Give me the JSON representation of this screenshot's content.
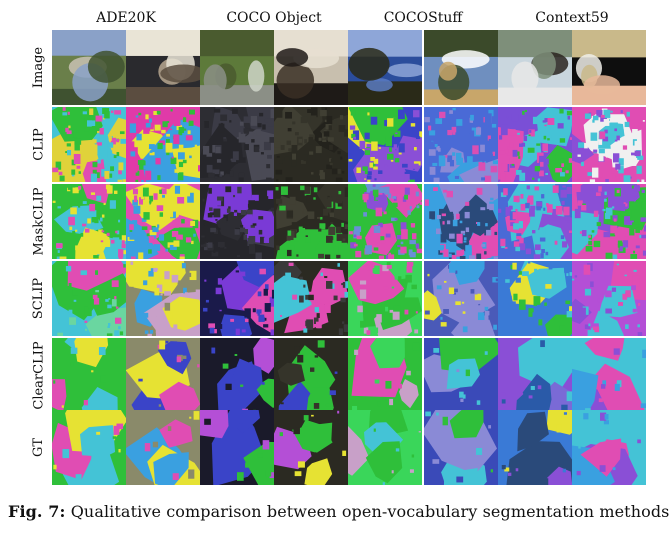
{
  "figure": {
    "columns": [
      "ADE20K",
      "COCO Object",
      "COCOStuff",
      "Context59"
    ],
    "rows": [
      "Image",
      "CLIP",
      "MaskCLIP",
      "SCLIP",
      "ClearCLIP",
      "GT"
    ],
    "caption_label": "Fig. 7:",
    "caption_text": "Qualitative comparison between open-vocabulary segmentation methods."
  },
  "palettes": {
    "image": [
      [
        "#6a7f4a",
        "#c9c2b4",
        "#8aa1c8",
        "#3f5230"
      ],
      [
        "#2a2a2e",
        "#b7a78f",
        "#e9e4d6",
        "#5b4d40"
      ],
      [
        "#5d7a3a",
        "#cfd6c9",
        "#4a5b2f",
        "#8b8f86"
      ],
      [
        "#c8bfae",
        "#3a2f25",
        "#e6dfd1",
        "#1e1a17"
      ],
      [
        "#2b4d9c",
        "#5b7bc2",
        "#8ea6d8",
        "#2a2a18"
      ],
      [
        "#6f8fbf",
        "#ffffff",
        "#3b4a2a",
        "#c8a66a"
      ],
      [
        "#c9d6de",
        "#2a2420",
        "#7e8f7a",
        "#e8e8e8"
      ],
      [
        "#0e0e0e",
        "#f0efe9",
        "#c9b98a",
        "#e8b89a"
      ]
    ],
    "clip": [
      [
        "#44c3d6",
        "#e0d23a",
        "#2fbf3a",
        "#e04db3"
      ],
      [
        "#e03aa8",
        "#e6e233",
        "#2fbf3a",
        "#3aa0e0"
      ],
      [
        "#2d2d33",
        "#3b3b46",
        "#26262b",
        "#4a4a55"
      ],
      [
        "#2b2a22",
        "#35342a",
        "#23221c",
        "#403f33"
      ],
      [
        "#3a44c8",
        "#8a4fd6",
        "#e6e233",
        "#2fbf3a"
      ],
      [
        "#4a6ad6",
        "#8a8ad6",
        "#d94fb3",
        "#3aa0e0"
      ],
      [
        "#7a4fd6",
        "#44c3d6",
        "#e04db3",
        "#2fbf3a"
      ],
      [
        "#e04db3",
        "#f0f0f0",
        "#44c3d6",
        "#8a4fd6"
      ]
    ],
    "maskclip": [
      [
        "#2fbf3a",
        "#44c3d6",
        "#e04db3",
        "#e6e233"
      ],
      [
        "#e04db3",
        "#e6e233",
        "#3aa0e0",
        "#2fbf3a"
      ],
      [
        "#26262b",
        "#7a3ad6",
        "#2d2d33",
        "#3b3b46"
      ],
      [
        "#2b2a22",
        "#2fbf3a",
        "#35342a",
        "#403f33"
      ],
      [
        "#2fbf3a",
        "#e04db3",
        "#6a8fd6",
        "#8a4fd6"
      ],
      [
        "#3aa0e0",
        "#2a4a7a",
        "#e04db3",
        "#8a8ad6"
      ],
      [
        "#4a6ad6",
        "#44c3d6",
        "#e04db3",
        "#8a4fd6"
      ],
      [
        "#e04db3",
        "#8a4fd6",
        "#2fbf3a",
        "#44c3d6"
      ]
    ],
    "sclip": [
      [
        "#44c3d6",
        "#2fbf3a",
        "#6ad6a0",
        "#e04db3"
      ],
      [
        "#8a8a6a",
        "#e6e233",
        "#3aa0e0",
        "#c8a0c8"
      ],
      [
        "#1a1a4a",
        "#3a44c8",
        "#7a3ad6",
        "#e04db3"
      ],
      [
        "#2b2a22",
        "#e04db3",
        "#3a3a3a",
        "#44c3d6"
      ],
      [
        "#3ad65a",
        "#2fbf3a",
        "#c8a0c8",
        "#e04db3"
      ],
      [
        "#4a5ab8",
        "#8a8ad6",
        "#e6e233",
        "#3aa0e0"
      ],
      [
        "#3a7ad6",
        "#44c3d6",
        "#e6e233",
        "#2fbf3a"
      ],
      [
        "#b44fd6",
        "#44c3d6",
        "#e04db3",
        "#8a4fd6"
      ]
    ],
    "clearclip": [
      [
        "#2fbf3a",
        "#44c3d6",
        "#e04db3",
        "#e6e233"
      ],
      [
        "#8a8a6a",
        "#3a44c8",
        "#e6e233",
        "#e04db3"
      ],
      [
        "#1a1a2a",
        "#3a44c8",
        "#b44fd6",
        "#2fbf3a"
      ],
      [
        "#2b2a22",
        "#2fbf3a",
        "#3a44c8",
        "#35342a"
      ],
      [
        "#2fbf3a",
        "#3ad65a",
        "#c8a0c8",
        "#e04db3"
      ],
      [
        "#3a4ab8",
        "#44c3d6",
        "#8a8ad6",
        "#2fbf3a"
      ],
      [
        "#8a4fd6",
        "#2a5aa8",
        "#44c3d6",
        "#7a6ad6"
      ],
      [
        "#44c3d6",
        "#e04db3",
        "#8a4fd6",
        "#3aa0e0"
      ]
    ],
    "gt": [
      [
        "#2fbf3a",
        "#44c3d6",
        "#e04db3",
        "#e6e233"
      ],
      [
        "#8a8a6a",
        "#3aa0e0",
        "#e04db3",
        "#e6e233"
      ],
      [
        "#1a1a2a",
        "#3a44c8",
        "#b44fd6",
        "#2fbf3a"
      ],
      [
        "#2b2a22",
        "#2fbf3a",
        "#e6e233",
        "#b44fd6"
      ],
      [
        "#3ad65a",
        "#2fbf3a",
        "#c8a0c8",
        "#44c3d6"
      ],
      [
        "#3a4ab8",
        "#44c3d6",
        "#8a8ad6",
        "#2fbf3a"
      ],
      [
        "#3a7ad6",
        "#2a4a7a",
        "#e6e233",
        "#8a4fd6"
      ],
      [
        "#44c3d6",
        "#e04db3",
        "#8a4fd6",
        "#3aa0e0"
      ]
    ]
  }
}
